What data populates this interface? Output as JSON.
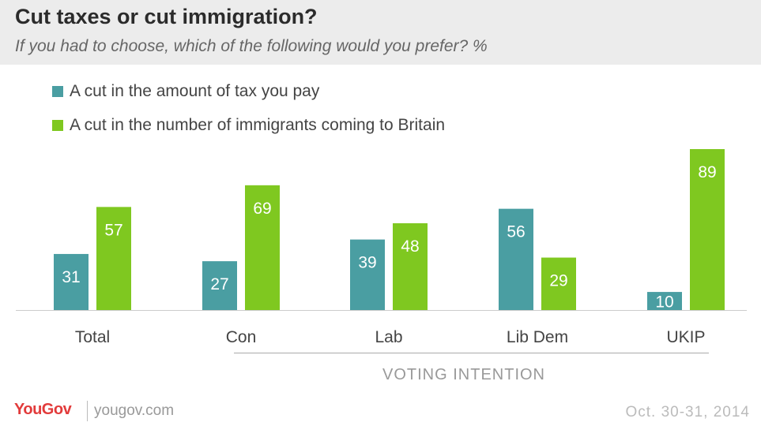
{
  "header": {
    "title": "Cut taxes or cut immigration?",
    "subtitle": "If you had to choose, which of the following would you prefer? %"
  },
  "colors": {
    "series1": "#4a9ea2",
    "series2": "#7fc820",
    "header_bg": "#ececec",
    "brand": "#e23b3b"
  },
  "chart_data": {
    "type": "bar",
    "title": "Cut taxes or cut immigration?",
    "subtitle": "If you had to choose, which of the following would you prefer? %",
    "categories": [
      "Total",
      "Con",
      "Lab",
      "Lib Dem",
      "UKIP"
    ],
    "series": [
      {
        "name": "A cut in the amount of tax you pay",
        "values": [
          31,
          27,
          39,
          56,
          10
        ]
      },
      {
        "name": "A cut in the number of immigrants coming to Britain",
        "values": [
          57,
          69,
          48,
          29,
          89
        ]
      }
    ],
    "group_label": "VOTING INTENTION",
    "xlabel": "",
    "ylabel": "",
    "ylim": [
      0,
      89
    ],
    "legend": "top-left",
    "grid": false
  },
  "footer": {
    "logo": "YouGov",
    "url": "yougov.com",
    "date": "Oct. 30-31, 2014"
  }
}
